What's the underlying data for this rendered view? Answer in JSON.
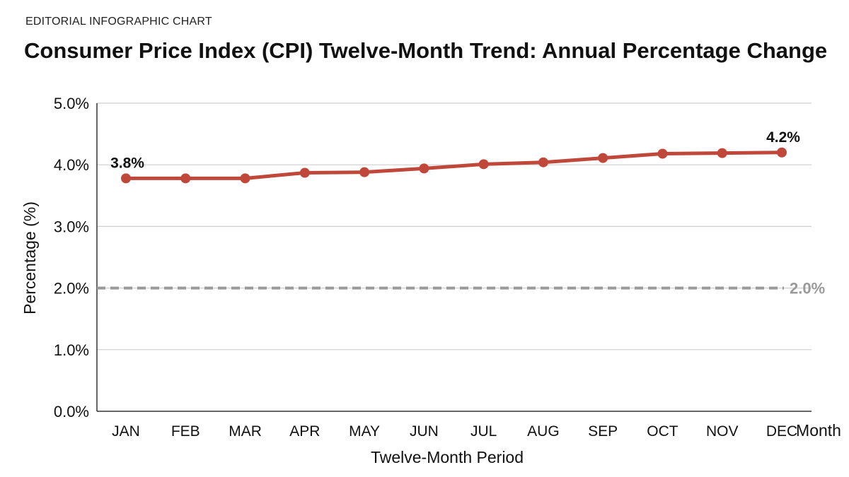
{
  "header": {
    "kicker": "EDITORIAL INFOGRAPHIC CHART",
    "title": "Consumer Price Index (CPI) Twelve-Month Trend: Annual Percentage Change"
  },
  "chart_data": {
    "type": "line",
    "title": "Consumer Price Index (CPI) Twelve-Month Trend: Annual Percentage Change",
    "xlabel": "Twelve-Month Period",
    "x_axis_end_label": "Month",
    "ylabel": "Percentage (%)",
    "ylim": [
      0,
      5
    ],
    "y_ticks": [
      0,
      1,
      2,
      3,
      4,
      5
    ],
    "y_tick_labels": [
      "0.0%",
      "1.0%",
      "2.0%",
      "3.0%",
      "4.0%",
      "5.0%"
    ],
    "categories": [
      "JAN",
      "FEB",
      "MAR",
      "APR",
      "MAY",
      "JUN",
      "JUL",
      "AUG",
      "SEP",
      "OCT",
      "NOV",
      "DEC"
    ],
    "series": [
      {
        "values": [
          3.78,
          3.78,
          3.78,
          3.87,
          3.88,
          3.94,
          4.01,
          4.04,
          4.11,
          4.18,
          4.19,
          4.2
        ],
        "color": "#c0483a"
      }
    ],
    "data_labels": [
      {
        "index": 0,
        "text": "3.8%"
      },
      {
        "index": 11,
        "text": "4.2%"
      }
    ],
    "reference_line": {
      "value": 2.0,
      "label": "2.0%",
      "style": "dashed",
      "color": "#9a9a9a"
    },
    "grid": true,
    "gridline_color": "#cfcfcf"
  }
}
